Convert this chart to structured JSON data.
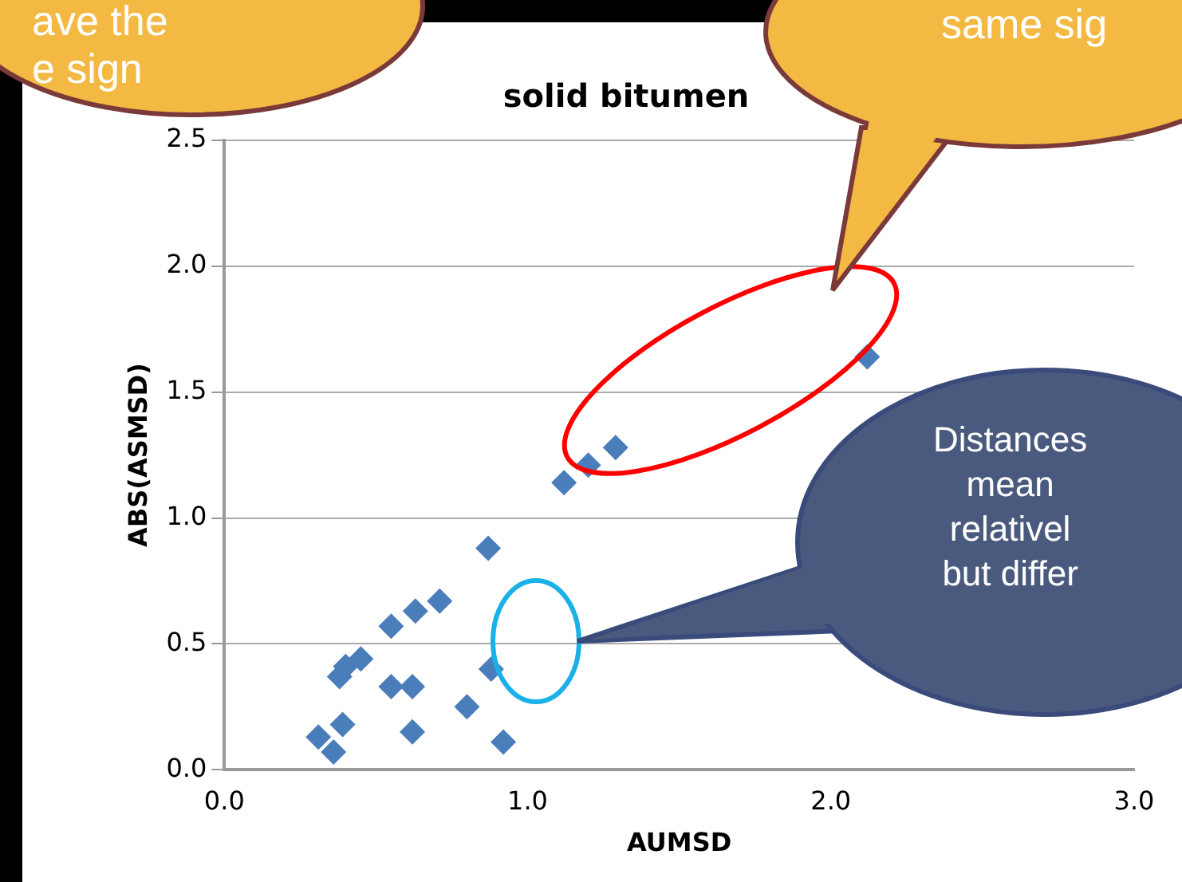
{
  "chart_data": {
    "type": "scatter",
    "title": "solid bitumen",
    "xlabel": "AUMSD",
    "ylabel": "ABS(ASMSD)",
    "x": [
      2.12,
      1.29,
      1.2,
      1.12,
      0.87,
      0.71,
      0.63,
      0.55,
      0.45,
      0.4,
      0.38,
      0.55,
      0.62,
      0.88,
      0.8,
      0.62,
      0.31,
      0.39,
      0.36,
      0.92
    ],
    "series": [
      {
        "color": "#4a7ebb",
        "values": [
          1.64,
          1.28,
          1.21,
          1.14,
          0.88,
          0.67,
          0.63,
          0.57,
          0.44,
          0.41,
          0.37,
          0.33,
          0.33,
          0.4,
          0.25,
          0.15,
          0.13,
          0.18,
          0.07,
          0.11
        ]
      }
    ],
    "xlim": [
      0,
      3
    ],
    "xticks": [
      {
        "value": 0,
        "label": "0.0"
      },
      {
        "value": 1,
        "label": "1.0"
      },
      {
        "value": 2,
        "label": "2.0"
      },
      {
        "value": 3,
        "label": "3.0"
      }
    ],
    "ylim": [
      0,
      2.5
    ],
    "yticks": [
      {
        "value": 0,
        "label": "0.0"
      },
      {
        "value": 0.5,
        "label": "0.5"
      },
      {
        "value": 1,
        "label": "1.0"
      },
      {
        "value": 1.5,
        "label": "1.5"
      },
      {
        "value": 2,
        "label": "2.0"
      },
      {
        "value": 2.5,
        "label": "2.5"
      }
    ],
    "grid": "y",
    "marker": "diamond",
    "legend": false,
    "annotations": [
      "ave the\ne sign",
      "same sig",
      "Distances\nmean\nrelativel\nbut differ"
    ]
  }
}
